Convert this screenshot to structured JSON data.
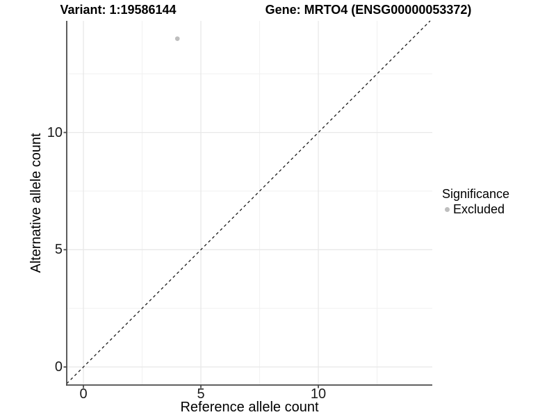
{
  "header": {
    "variant_title": "Variant: 1:19586144",
    "gene_title": "Gene: MRTO4 (ENSG00000053372)"
  },
  "legend": {
    "title": "Significance",
    "items": [
      {
        "label": "Excluded",
        "color": "#bebebe",
        "marker": "circle"
      }
    ]
  },
  "chart_data": {
    "type": "scatter",
    "title": "Variant: 1:19586144 / Gene: MRTO4 (ENSG00000053372)",
    "xlabel": "Reference allele count",
    "ylabel": "Alternative allele count",
    "xlim": [
      -0.71,
      14.85
    ],
    "ylim": [
      -0.77,
      14.76
    ],
    "x_ticks": [
      0,
      5,
      10
    ],
    "y_ticks": [
      0,
      5,
      10
    ],
    "x_minor_ticks": [
      2.5,
      7.5,
      12.5
    ],
    "y_minor_ticks": [
      2.5,
      7.5,
      12.5
    ],
    "grid": true,
    "legend_position": "right",
    "series": [
      {
        "name": "Excluded",
        "color": "#bebebe",
        "points": [
          {
            "x": 4,
            "y": 14
          }
        ]
      }
    ],
    "reference_line": {
      "type": "identity_y_equals_x",
      "style": "dashed"
    }
  },
  "colors": {
    "background": "#ffffff",
    "axis": "#4a4a4a",
    "grid_major": "#e8e8e8",
    "grid_minor": "#f2f2f2",
    "reference_line": "#1a1a1a",
    "point": "#bebebe",
    "text": "#000000"
  }
}
